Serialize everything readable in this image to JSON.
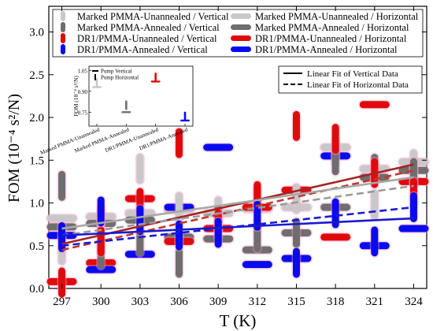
{
  "colors": {
    "marked_unannealed": "#c8c8c8",
    "marked_annealed": "#6e6e6e",
    "dr1_unannealed": "#e00a0a",
    "dr1_annealed": "#0a0aee",
    "vertical_fit_red": "#a52323",
    "vertical_fit_blue": "#1a1acc",
    "vertical_fit_gray": "#a8a8a8",
    "horizontal_fit_red": "#c0392b",
    "horizontal_fit_blue": "#1a1ad8",
    "horizontal_fit_gray": "#9a9a9a",
    "highlight_pink": "#ff9ecf"
  },
  "chart_data": {
    "type": "scatter",
    "xlabel": "T (K)",
    "ylabel": "FOM (10⁻⁴ s²/N)",
    "xlim": [
      296,
      325
    ],
    "ylim": [
      0.0,
      3.3
    ],
    "xticks": [
      "297",
      "300",
      "303",
      "306",
      "309",
      "312",
      "315",
      "318",
      "321",
      "324"
    ],
    "yticks": [
      "0.0",
      "0.5",
      "1.0",
      "1.5",
      "2.0",
      "2.5",
      "3.0"
    ],
    "legend_position": "top",
    "legend": [
      {
        "label": "Marked PMMA-Unannealed / Vertical",
        "marker": "vbar",
        "color_key": "marked_unannealed"
      },
      {
        "label": "Marked PMMA-Unannealed / Horizontal",
        "marker": "hbar",
        "color_key": "marked_unannealed"
      },
      {
        "label": "Marked PMMA-Annealed / Vertical",
        "marker": "vbar",
        "color_key": "marked_annealed"
      },
      {
        "label": "Marked PMMA-Annealed / Horizontal",
        "marker": "hbar",
        "color_key": "marked_annealed"
      },
      {
        "label": "DR1/PMMA-Unannealed / Vertical",
        "marker": "vbar",
        "color_key": "dr1_unannealed"
      },
      {
        "label": "DR1/PMMA-Unannealed / Horizontal",
        "marker": "hbar",
        "color_key": "dr1_unannealed"
      },
      {
        "label": "DR1/PMMA-Annealed / Vertical",
        "marker": "vbar",
        "color_key": "dr1_annealed"
      },
      {
        "label": "DR1/PMMA-Annealed / Horizontal",
        "marker": "hbar",
        "color_key": "dr1_annealed"
      }
    ],
    "fit_legend": [
      {
        "label": "Linear Fit of Vertical Data",
        "style": "solid"
      },
      {
        "label": "Linear Fit of Horizontal Data",
        "style": "dashed"
      }
    ],
    "series": [
      {
        "color_key": "marked_unannealed",
        "marker": "vbar",
        "x": [
          297,
          300,
          303,
          306,
          309,
          312,
          315,
          318,
          321,
          324
        ],
        "y": [
          0.45,
          0.8,
          1.4,
          0.95,
          0.9,
          1.05,
          1.05,
          1.6,
          0.98,
          1.45
        ]
      },
      {
        "color_key": "marked_unannealed",
        "marker": "hbar",
        "x": [
          297,
          300,
          303,
          306,
          309,
          312,
          315,
          318,
          321,
          324
        ],
        "y": [
          0.82,
          0.84,
          0.88,
          0.92,
          0.88,
          0.93,
          0.95,
          1.65,
          1.4,
          1.48
        ]
      },
      {
        "color_key": "marked_annealed",
        "marker": "vbar",
        "x": [
          297,
          300,
          303,
          306,
          309,
          312,
          315,
          318,
          321,
          324
        ],
        "y": [
          1.2,
          0.4,
          0.55,
          0.3,
          0.8,
          0.6,
          0.65,
          1.5,
          1.4,
          1.35
        ]
      },
      {
        "color_key": "marked_annealed",
        "marker": "hbar",
        "x": [
          297,
          300,
          303,
          306,
          309,
          312,
          315,
          318,
          321,
          324
        ],
        "y": [
          0.72,
          0.76,
          0.8,
          0.6,
          0.58,
          0.45,
          0.65,
          0.95,
          1.3,
          1.38
        ]
      },
      {
        "color_key": "dr1_unannealed",
        "marker": "vbar",
        "x": [
          297,
          300,
          303,
          306,
          309,
          312,
          315,
          318,
          321,
          324
        ],
        "y": [
          0.07,
          0.55,
          1.0,
          1.7,
          0.75,
          1.08,
          1.9,
          1.75,
          1.35,
          1.12
        ]
      },
      {
        "color_key": "dr1_unannealed",
        "marker": "hbar",
        "x": [
          297,
          300,
          303,
          306,
          309,
          312,
          315,
          318,
          321,
          324
        ],
        "y": [
          0.08,
          0.3,
          1.05,
          0.55,
          0.7,
          0.95,
          1.15,
          0.6,
          2.15,
          1.25
        ]
      },
      {
        "color_key": "dr1_annealed",
        "marker": "vbar",
        "x": [
          297,
          300,
          303,
          306,
          309,
          312,
          315,
          318,
          321,
          324
        ],
        "y": [
          0.6,
          0.9,
          0.8,
          0.62,
          0.65,
          0.85,
          0.3,
          0.88,
          0.55,
          0.95
        ]
      },
      {
        "color_key": "dr1_annealed",
        "marker": "hbar",
        "x": [
          297,
          300,
          303,
          306,
          309,
          312,
          315,
          318,
          321,
          324
        ],
        "y": [
          0.62,
          0.22,
          0.4,
          0.95,
          1.65,
          0.28,
          0.35,
          1.55,
          0.5,
          0.7
        ]
      }
    ],
    "fits": [
      {
        "color_key": "vertical_fit_red",
        "style": "solid",
        "x": [
          297,
          324
        ],
        "y": [
          0.52,
          1.45
        ]
      },
      {
        "color_key": "horizontal_fit_red",
        "style": "dashed",
        "x": [
          297,
          324
        ],
        "y": [
          0.45,
          1.38
        ]
      },
      {
        "color_key": "vertical_fit_gray",
        "style": "solid",
        "x": [
          297,
          324
        ],
        "y": [
          0.7,
          1.3
        ]
      },
      {
        "color_key": "horizontal_fit_gray",
        "style": "dashed",
        "x": [
          297,
          324
        ],
        "y": [
          0.62,
          1.2
        ]
      },
      {
        "color_key": "vertical_fit_blue",
        "style": "solid",
        "x": [
          297,
          324
        ],
        "y": [
          0.62,
          0.82
        ]
      },
      {
        "color_key": "horizontal_fit_blue",
        "style": "dashed",
        "x": [
          297,
          324
        ],
        "y": [
          0.5,
          0.95
        ]
      }
    ],
    "inset": {
      "ylabel": "FOM (10⁻⁴ s²/N)",
      "ylim": [
        0.65,
        1.08
      ],
      "yticks": [
        "0.75",
        "0.90",
        "1.05"
      ],
      "categories": [
        "Marked PMMA-Unannealed",
        "Marked PMMA-Annealed",
        "DR1/PMMA-Unannealed",
        "DR1/PMMA-Annealed"
      ],
      "legend": [
        {
          "label": "Pump Vertical",
          "marker": "hbar"
        },
        {
          "label": "Pump Horizontal",
          "marker": "vbar"
        }
      ],
      "series": [
        {
          "name": "Pump Vertical",
          "color_keys": [
            "marked_unannealed",
            "marked_annealed",
            "dr1_unannealed",
            "dr1_annealed"
          ],
          "marker": "hbar",
          "values": [
            0.93,
            0.75,
            0.97,
            0.69
          ]
        },
        {
          "name": "Pump Horizontal",
          "color_keys": [
            "marked_unannealed",
            "marked_annealed",
            "dr1_unannealed",
            "dr1_annealed"
          ],
          "marker": "vbar",
          "values": [
            0.96,
            0.8,
            1.0,
            0.72
          ]
        }
      ]
    }
  }
}
